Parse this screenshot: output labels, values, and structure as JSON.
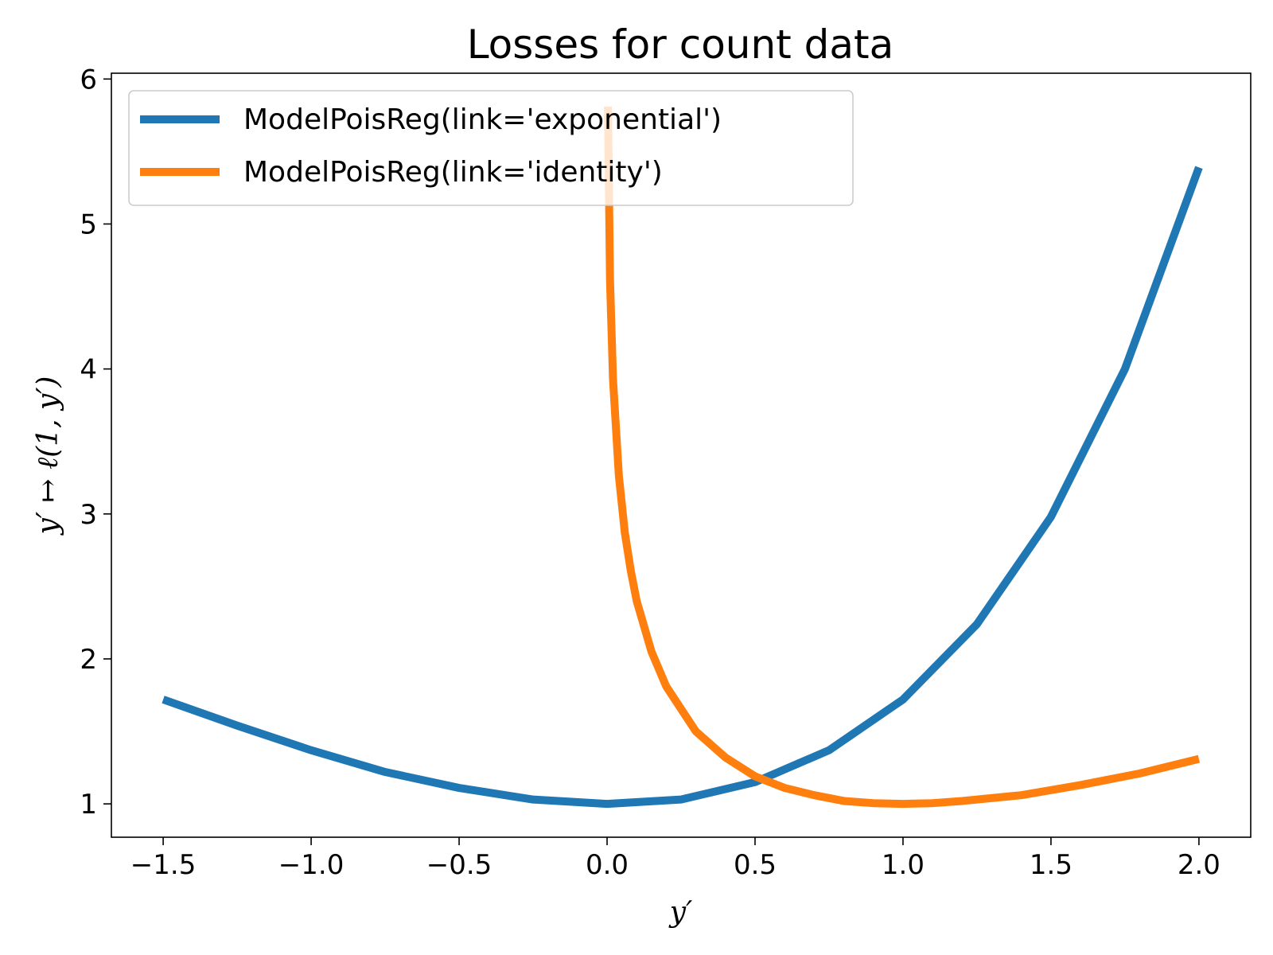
{
  "chart_data": {
    "type": "line",
    "title": "Losses for count data",
    "xlabel": "y′",
    "ylabel": "y′ ↦ ℓ(1, y′)",
    "xlim": [
      -1.675,
      2.175
    ],
    "ylim": [
      0.77,
      6.04
    ],
    "xticks": [
      -1.5,
      -1.0,
      -0.5,
      0.0,
      0.5,
      1.0,
      1.5,
      2.0
    ],
    "xtick_labels": [
      "−1.5",
      "−1.0",
      "−0.5",
      "0.0",
      "0.5",
      "1.0",
      "1.5",
      "2.0"
    ],
    "yticks": [
      1,
      2,
      3,
      4,
      5,
      6
    ],
    "ytick_labels": [
      "1",
      "2",
      "3",
      "4",
      "5",
      "6"
    ],
    "grid": false,
    "legend_position": "top-left",
    "series": [
      {
        "name": "ModelPoisReg(link='exponential')",
        "color": "#1f77b4",
        "x": [
          -1.5,
          -1.25,
          -1.0,
          -0.75,
          -0.5,
          -0.25,
          0.0,
          0.25,
          0.5,
          0.75,
          1.0,
          1.25,
          1.5,
          1.75,
          2.0
        ],
        "y": [
          1.72,
          1.54,
          1.37,
          1.22,
          1.11,
          1.03,
          1.0,
          1.03,
          1.15,
          1.37,
          1.72,
          2.24,
          2.98,
          4.0,
          5.39
        ]
      },
      {
        "name": "ModelPoisReg(link='identity')",
        "color": "#ff7f0e",
        "x": [
          0.003,
          0.01,
          0.02,
          0.04,
          0.06,
          0.08,
          0.1,
          0.15,
          0.2,
          0.3,
          0.4,
          0.5,
          0.6,
          0.7,
          0.8,
          0.9,
          1.0,
          1.1,
          1.2,
          1.4,
          1.6,
          1.8,
          2.0
        ],
        "y": [
          5.81,
          4.61,
          3.93,
          3.26,
          2.87,
          2.61,
          2.4,
          2.05,
          1.81,
          1.5,
          1.32,
          1.19,
          1.11,
          1.06,
          1.02,
          1.005,
          1.0,
          1.005,
          1.02,
          1.06,
          1.13,
          1.21,
          1.31
        ]
      }
    ]
  }
}
